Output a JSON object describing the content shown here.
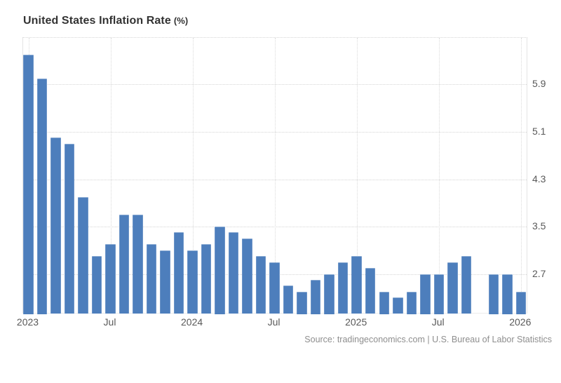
{
  "header": {
    "title": "United States Inflation Rate",
    "unit": "(%)"
  },
  "footer": {
    "source_text": "Source: tradingeconomics.com | U.S. Bureau of Labor Statistics"
  },
  "colors": {
    "bar": "#4d7ebc",
    "grid": "#d5d5d5",
    "plot_border": "#e4e4e4",
    "title_text": "#333333",
    "axis_label_text": "#595959",
    "source_text": "#8e8e8e",
    "background": "#ffffff"
  },
  "chart_data": {
    "type": "bar",
    "title": "United States Inflation Rate (%)",
    "xlabel": "",
    "ylabel": "",
    "grid": true,
    "legend_position": "none",
    "y_axis_side": "right",
    "ylim": [
      2.0,
      6.7
    ],
    "y_ticks": [
      2.7,
      3.5,
      4.3,
      5.1,
      5.9
    ],
    "x_tick_labels": [
      {
        "index": 0,
        "label": "2023"
      },
      {
        "index": 6,
        "label": "Jul"
      },
      {
        "index": 12,
        "label": "2024"
      },
      {
        "index": 18,
        "label": "Jul"
      },
      {
        "index": 24,
        "label": "2025"
      },
      {
        "index": 30,
        "label": "Jul"
      },
      {
        "index": 36,
        "label": "2026"
      }
    ],
    "x": [
      "Jan 2023",
      "Feb 2023",
      "Mar 2023",
      "Apr 2023",
      "May 2023",
      "Jun 2023",
      "Jul 2023",
      "Aug 2023",
      "Sep 2023",
      "Oct 2023",
      "Nov 2023",
      "Dec 2023",
      "Jan 2024",
      "Feb 2024",
      "Mar 2024",
      "Apr 2024",
      "May 2024",
      "Jun 2024",
      "Jul 2024",
      "Aug 2024",
      "Sep 2024",
      "Oct 2024",
      "Nov 2024",
      "Dec 2024",
      "Jan 2025",
      "Feb 2025",
      "Mar 2025",
      "Apr 2025",
      "May 2025",
      "Jun 2025",
      "Jul 2025",
      "Aug 2025",
      "Sep 2025",
      "Oct 2025",
      "Nov 2025",
      "Dec 2025",
      "Jan 2026"
    ],
    "values": [
      6.4,
      6.0,
      5.0,
      4.9,
      4.0,
      3.0,
      3.2,
      3.7,
      3.7,
      3.2,
      3.1,
      3.4,
      3.1,
      3.2,
      3.5,
      3.4,
      3.3,
      3.0,
      2.9,
      2.5,
      2.4,
      2.6,
      2.7,
      2.9,
      3.0,
      2.8,
      2.4,
      2.3,
      2.4,
      2.7,
      2.7,
      2.9,
      3.0,
      null,
      2.7,
      2.7,
      2.4
    ]
  }
}
